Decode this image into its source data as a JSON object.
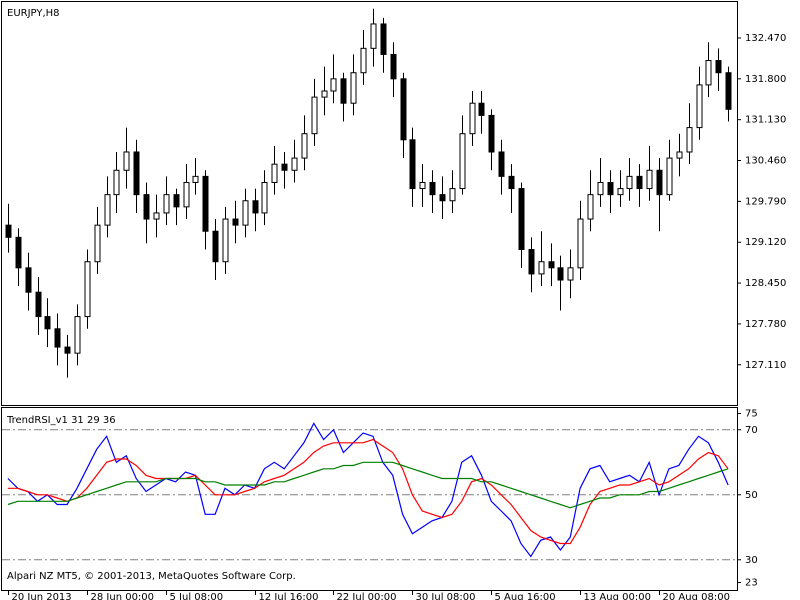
{
  "chart_data": [
    {
      "type": "candlestick",
      "title": "EURJPY,H8",
      "up_color": "#ffffff",
      "down_color": "#000000",
      "edge_color": "#000000",
      "xlim": [
        -0.6,
        73.9
      ],
      "ylim": [
        126.45,
        133.06
      ],
      "yticks": [
        {
          "value": 132.47,
          "label": "132.470"
        },
        {
          "value": 131.8,
          "label": "131.800"
        },
        {
          "value": 131.13,
          "label": "131.130"
        },
        {
          "value": 130.46,
          "label": "130.460"
        },
        {
          "value": 129.79,
          "label": "129.790"
        },
        {
          "value": 129.12,
          "label": "129.120"
        },
        {
          "value": 128.45,
          "label": "128.450"
        },
        {
          "value": 127.78,
          "label": "127.780"
        },
        {
          "value": 127.11,
          "label": "127.110"
        }
      ],
      "ohlc": [
        [
          129.4,
          129.75,
          128.95,
          129.2
        ],
        [
          129.2,
          129.35,
          128.4,
          128.7
        ],
        [
          128.7,
          128.95,
          128.0,
          128.3
        ],
        [
          128.3,
          128.55,
          127.6,
          127.9
        ],
        [
          127.9,
          128.2,
          127.4,
          127.7
        ],
        [
          127.7,
          127.95,
          127.1,
          127.4
        ],
        [
          127.4,
          127.6,
          126.9,
          127.3
        ],
        [
          127.3,
          128.1,
          127.1,
          127.9
        ],
        [
          127.9,
          129.0,
          127.7,
          128.8
        ],
        [
          128.8,
          129.7,
          128.6,
          129.4
        ],
        [
          129.4,
          130.2,
          129.2,
          129.9
        ],
        [
          129.9,
          130.6,
          129.6,
          130.3
        ],
        [
          130.3,
          131.0,
          130.0,
          130.6
        ],
        [
          130.6,
          130.8,
          129.6,
          129.9
        ],
        [
          129.9,
          130.1,
          129.1,
          129.5
        ],
        [
          129.5,
          129.9,
          129.2,
          129.6
        ],
        [
          129.6,
          130.2,
          129.4,
          129.9
        ],
        [
          129.9,
          130.0,
          129.4,
          129.7
        ],
        [
          129.7,
          130.4,
          129.5,
          130.1
        ],
        [
          130.1,
          130.5,
          129.9,
          130.2
        ],
        [
          130.2,
          130.3,
          129.0,
          129.3
        ],
        [
          129.3,
          129.5,
          128.5,
          128.8
        ],
        [
          128.8,
          129.7,
          128.6,
          129.5
        ],
        [
          129.5,
          129.8,
          129.1,
          129.4
        ],
        [
          129.4,
          130.0,
          129.2,
          129.8
        ],
        [
          129.8,
          130.0,
          129.3,
          129.6
        ],
        [
          129.6,
          130.3,
          129.4,
          130.1
        ],
        [
          130.1,
          130.7,
          129.9,
          130.4
        ],
        [
          130.4,
          130.6,
          130.0,
          130.3
        ],
        [
          130.3,
          130.8,
          130.1,
          130.5
        ],
        [
          130.5,
          131.2,
          130.3,
          130.9
        ],
        [
          130.9,
          131.8,
          130.7,
          131.5
        ],
        [
          131.5,
          132.0,
          131.2,
          131.6
        ],
        [
          131.6,
          132.2,
          131.4,
          131.8
        ],
        [
          131.8,
          131.9,
          131.1,
          131.4
        ],
        [
          131.4,
          132.2,
          131.2,
          131.9
        ],
        [
          131.9,
          132.6,
          131.7,
          132.3
        ],
        [
          132.3,
          132.95,
          132.0,
          132.7
        ],
        [
          132.7,
          132.8,
          131.9,
          132.2
        ],
        [
          132.2,
          132.4,
          131.5,
          131.8
        ],
        [
          131.8,
          131.9,
          130.5,
          130.8
        ],
        [
          130.8,
          131.0,
          129.7,
          130.0
        ],
        [
          130.0,
          130.4,
          129.7,
          130.1
        ],
        [
          130.1,
          130.3,
          129.6,
          129.9
        ],
        [
          129.9,
          130.2,
          129.5,
          129.8
        ],
        [
          129.8,
          130.3,
          129.6,
          130.0
        ],
        [
          130.0,
          131.2,
          129.9,
          130.9
        ],
        [
          130.9,
          131.6,
          130.7,
          131.4
        ],
        [
          131.4,
          131.6,
          130.9,
          131.2
        ],
        [
          131.2,
          131.3,
          130.3,
          130.6
        ],
        [
          130.6,
          130.8,
          129.9,
          130.2
        ],
        [
          130.2,
          130.4,
          129.6,
          130.0
        ],
        [
          130.0,
          130.1,
          128.7,
          129.0
        ],
        [
          129.0,
          129.2,
          128.3,
          128.6
        ],
        [
          128.6,
          129.3,
          128.4,
          128.8
        ],
        [
          128.8,
          129.1,
          128.4,
          128.7
        ],
        [
          128.7,
          128.9,
          128.0,
          128.5
        ],
        [
          128.5,
          129.0,
          128.2,
          128.7
        ],
        [
          128.7,
          129.8,
          128.5,
          129.5
        ],
        [
          129.5,
          130.3,
          129.3,
          129.9
        ],
        [
          129.9,
          130.5,
          129.7,
          130.1
        ],
        [
          130.1,
          130.3,
          129.6,
          129.9
        ],
        [
          129.9,
          130.3,
          129.7,
          130.0
        ],
        [
          130.0,
          130.5,
          129.8,
          130.2
        ],
        [
          130.2,
          130.4,
          129.7,
          130.0
        ],
        [
          130.0,
          130.7,
          129.8,
          130.3
        ],
        [
          130.3,
          130.5,
          129.3,
          129.9
        ],
        [
          129.9,
          130.8,
          129.8,
          130.5
        ],
        [
          130.5,
          130.9,
          130.2,
          130.6
        ],
        [
          130.6,
          131.4,
          130.4,
          131.0
        ],
        [
          131.0,
          132.0,
          130.8,
          131.7
        ],
        [
          131.7,
          132.4,
          131.5,
          132.1
        ],
        [
          132.1,
          132.3,
          131.6,
          131.9
        ],
        [
          131.9,
          132.0,
          131.1,
          131.3
        ]
      ]
    },
    {
      "type": "line",
      "title": "TrendRSI_v1 31 29 36",
      "footer": "Alpari NZ MT5, © 2001-2013, MetaQuotes Software Corp.",
      "xlim": [
        -0.6,
        73.9
      ],
      "ylim": [
        20.7,
        76.7
      ],
      "yticks": [
        75,
        70,
        50,
        30,
        23
      ],
      "levels": [
        70,
        50,
        30
      ],
      "level_color": "#808080",
      "xticks": [
        {
          "value": 0,
          "label": "20 Jun 2013"
        },
        {
          "value": 8,
          "label": "28 Jun 00:00"
        },
        {
          "value": 16,
          "label": "5 Jul 08:00"
        },
        {
          "value": 25,
          "label": "12 Jul 16:00"
        },
        {
          "value": 33,
          "label": "22 Jul 00:00"
        },
        {
          "value": 41,
          "label": "30 Jul 08:00"
        },
        {
          "value": 49,
          "label": "5 Aug 16:00"
        },
        {
          "value": 58,
          "label": "13 Aug 00:00"
        },
        {
          "value": 66,
          "label": "20 Aug 08:00"
        }
      ],
      "series": [
        {
          "color": "#0000ff",
          "values": [
            55,
            52,
            51,
            48,
            50,
            47,
            47,
            52,
            58,
            64,
            68,
            60,
            62,
            55,
            51,
            53,
            55,
            54,
            57,
            56,
            44,
            44,
            52,
            50,
            53,
            52,
            58,
            60,
            58,
            62,
            66,
            72,
            67,
            70,
            63,
            66,
            69,
            68,
            60,
            56,
            44,
            38,
            40,
            42,
            43,
            48,
            60,
            62,
            56,
            48,
            45,
            42,
            35,
            31,
            36,
            37,
            33,
            37,
            52,
            58,
            59,
            54,
            55,
            56,
            54,
            60,
            50,
            58,
            59,
            64,
            68,
            66,
            60,
            53
          ]
        },
        {
          "color": "#ff0000",
          "values": [
            52,
            52,
            51,
            50,
            50,
            49,
            48,
            49,
            52,
            56,
            60,
            61,
            61,
            59,
            56,
            55,
            55,
            55,
            55,
            56,
            53,
            50,
            50,
            50,
            51,
            52,
            54,
            55,
            56,
            58,
            60,
            63,
            65,
            66,
            66,
            66,
            66,
            67,
            65,
            63,
            58,
            50,
            45,
            44,
            43,
            44,
            48,
            54,
            55,
            53,
            50,
            47,
            43,
            39,
            37,
            36,
            35,
            35,
            40,
            47,
            51,
            52,
            53,
            53,
            54,
            55,
            53,
            54,
            56,
            58,
            61,
            63,
            62,
            58
          ]
        },
        {
          "color": "#008000",
          "values": [
            47,
            48,
            48,
            48,
            48,
            48,
            48,
            49,
            50,
            51,
            52,
            53,
            54,
            54,
            54,
            54,
            55,
            55,
            55,
            55,
            54,
            54,
            53,
            53,
            53,
            53,
            53,
            54,
            54,
            55,
            56,
            57,
            58,
            58,
            59,
            59,
            60,
            60,
            60,
            60,
            59,
            58,
            57,
            56,
            55,
            55,
            55,
            55,
            54,
            54,
            53,
            52,
            51,
            50,
            49,
            48,
            47,
            46,
            47,
            48,
            49,
            49,
            50,
            50,
            50,
            51,
            51,
            52,
            53,
            54,
            55,
            56,
            57,
            58
          ]
        }
      ]
    }
  ]
}
